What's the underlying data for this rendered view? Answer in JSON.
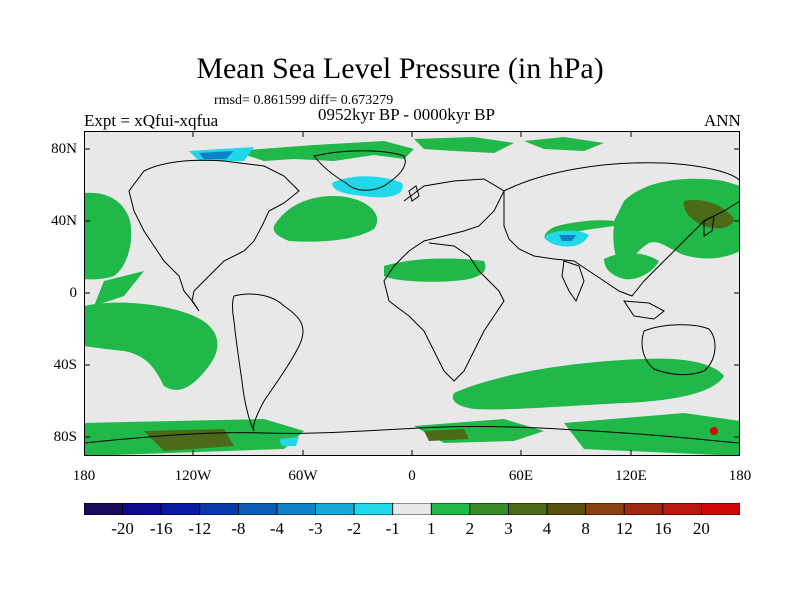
{
  "title": "Mean Sea Level Pressure (in hPa)",
  "stats": "rmsd= 0.861599 diff= 0.673279",
  "expt_label": "Expt = xQfui-xqfua",
  "period": "0952kyr BP - 0000kyr BP",
  "season": "ANN",
  "lat_ticks": [
    "80N",
    "40N",
    "0",
    "40S",
    "80S"
  ],
  "lon_ticks": [
    "180",
    "120W",
    "60W",
    "0",
    "60E",
    "120E",
    "180"
  ],
  "colorbar": {
    "labels": [
      "-20",
      "-16",
      "-12",
      "-8",
      "-4",
      "-3",
      "-2",
      "-1",
      "1",
      "2",
      "3",
      "4",
      "8",
      "12",
      "16",
      "20"
    ],
    "colors": [
      "#1a0a5c",
      "#0d0a8c",
      "#0a1aa0",
      "#0a3aa8",
      "#0a5cb8",
      "#1080c8",
      "#18a8d8",
      "#20d8e8",
      "#e8e8e8",
      "#20b848",
      "#3a8a28",
      "#4a6a18",
      "#5a5010",
      "#8a4010",
      "#a02810",
      "#b81810",
      "#d00808"
    ]
  },
  "colors": {
    "neutral": "#e8e8e8",
    "green": "#20b848",
    "dark_olive": "#4a6a18",
    "cyan": "#20d8e8",
    "blue": "#1080c8",
    "brown": "#5a5010"
  }
}
